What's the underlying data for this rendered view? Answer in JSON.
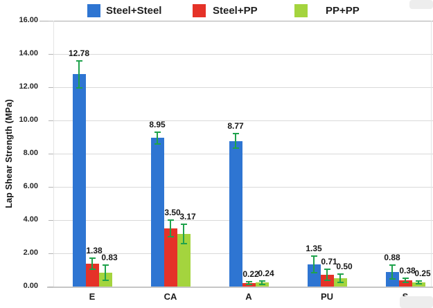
{
  "chart_data": {
    "type": "bar",
    "title": "",
    "xlabel": "",
    "ylabel": "Lap Shear Strength (MPa)",
    "categories": [
      "E",
      "CA",
      "A",
      "PU",
      "S"
    ],
    "series": [
      {
        "name": "Steel+Steel",
        "color": "#2e75d2",
        "values": [
          12.78,
          8.95,
          8.77,
          1.35,
          0.88
        ],
        "errors": [
          0.82,
          0.35,
          0.42,
          0.5,
          0.42
        ]
      },
      {
        "name": "Steel+PP",
        "color": "#e53228",
        "values": [
          1.38,
          3.5,
          0.22,
          0.71,
          0.38
        ],
        "errors": [
          0.33,
          0.5,
          0.08,
          0.35,
          0.12
        ]
      },
      {
        "name": "PP+PP",
        "color": "#a4d43e",
        "values": [
          0.83,
          3.17,
          0.24,
          0.5,
          0.25
        ],
        "errors": [
          0.45,
          0.58,
          0.1,
          0.26,
          0.08
        ]
      }
    ],
    "ylim": [
      0,
      16
    ],
    "ytick_step": 2,
    "ytick_labels": [
      "0.00",
      "2.00",
      "4.00",
      "6.00",
      "8.00",
      "10.00",
      "12.00",
      "14.00",
      "16.00"
    ],
    "grid": true,
    "legend_position": "top",
    "error_bar_color": "#1fa24c",
    "data_labels_shown": true
  }
}
